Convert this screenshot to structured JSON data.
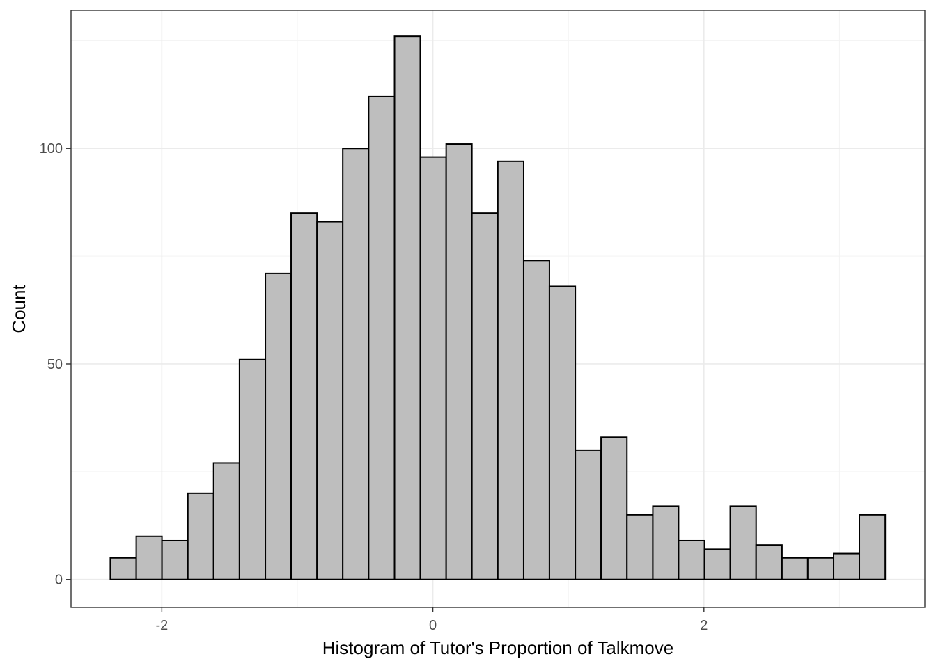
{
  "chart_data": {
    "type": "bar",
    "title": "",
    "xlabel": "Histogram of Tutor's Proportion of Talkmove",
    "ylabel": "Count",
    "xlim": [
      -2.67,
      3.63
    ],
    "ylim": [
      -6.5,
      132
    ],
    "x_ticks": [
      -2,
      0,
      2
    ],
    "x_tick_labels": [
      "-2",
      "0",
      "2"
    ],
    "y_ticks": [
      0,
      50,
      100
    ],
    "y_tick_labels": [
      "0",
      "50",
      "100"
    ],
    "grid": true,
    "bin_width": 0.1906,
    "bin_start": -2.38,
    "bins": [
      {
        "x0": -2.38,
        "x1": -2.189,
        "count": 5
      },
      {
        "x0": -2.189,
        "x1": -1.999,
        "count": 10
      },
      {
        "x0": -1.999,
        "x1": -1.808,
        "count": 9
      },
      {
        "x0": -1.808,
        "x1": -1.618,
        "count": 20
      },
      {
        "x0": -1.618,
        "x1": -1.427,
        "count": 27
      },
      {
        "x0": -1.427,
        "x1": -1.236,
        "count": 51
      },
      {
        "x0": -1.236,
        "x1": -1.046,
        "count": 71
      },
      {
        "x0": -1.046,
        "x1": -0.855,
        "count": 85
      },
      {
        "x0": -0.855,
        "x1": -0.665,
        "count": 83
      },
      {
        "x0": -0.665,
        "x1": -0.474,
        "count": 100
      },
      {
        "x0": -0.474,
        "x1": -0.283,
        "count": 112
      },
      {
        "x0": -0.283,
        "x1": -0.093,
        "count": 126
      },
      {
        "x0": -0.093,
        "x1": 0.098,
        "count": 98
      },
      {
        "x0": 0.098,
        "x1": 0.288,
        "count": 101
      },
      {
        "x0": 0.288,
        "x1": 0.479,
        "count": 85
      },
      {
        "x0": 0.479,
        "x1": 0.67,
        "count": 97
      },
      {
        "x0": 0.67,
        "x1": 0.86,
        "count": 74
      },
      {
        "x0": 0.86,
        "x1": 1.051,
        "count": 68
      },
      {
        "x0": 1.051,
        "x1": 1.241,
        "count": 30
      },
      {
        "x0": 1.241,
        "x1": 1.432,
        "count": 33
      },
      {
        "x0": 1.432,
        "x1": 1.623,
        "count": 15
      },
      {
        "x0": 1.623,
        "x1": 1.813,
        "count": 17
      },
      {
        "x0": 1.813,
        "x1": 2.004,
        "count": 9
      },
      {
        "x0": 2.004,
        "x1": 2.194,
        "count": 7
      },
      {
        "x0": 2.194,
        "x1": 2.385,
        "count": 17
      },
      {
        "x0": 2.385,
        "x1": 2.576,
        "count": 8
      },
      {
        "x0": 2.576,
        "x1": 2.766,
        "count": 5
      },
      {
        "x0": 2.766,
        "x1": 2.957,
        "count": 5
      },
      {
        "x0": 2.957,
        "x1": 3.147,
        "count": 6
      },
      {
        "x0": 3.147,
        "x1": 3.338,
        "count": 15
      }
    ],
    "colors": {
      "bar_fill": "#bebebe",
      "bar_stroke": "#000000",
      "grid": "#ebebeb",
      "panel_border": "#333333"
    }
  }
}
